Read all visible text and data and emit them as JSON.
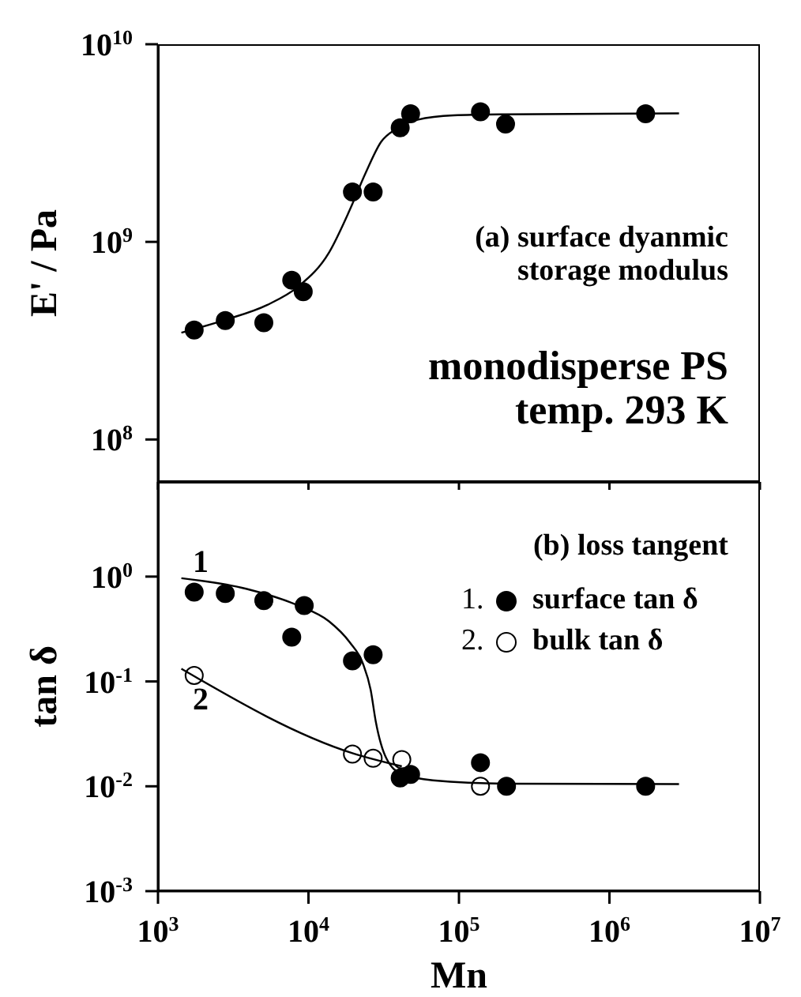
{
  "chart_data": [
    {
      "type": "scatter",
      "ylabel": "E' / Pa",
      "log": "xy",
      "xlim": [
        1000,
        10000000
      ],
      "xticks": [
        {
          "value": 1000,
          "label": null
        },
        {
          "value": 10000,
          "label": null
        },
        {
          "value": 100000,
          "label": null
        },
        {
          "value": 1000000,
          "label": null
        },
        {
          "value": 10000000,
          "label": null
        }
      ],
      "ylim": [
        61000000,
        10000000000
      ],
      "yticks": [
        {
          "value": 100000000,
          "label": "10$^{8}$"
        },
        {
          "value": 1000000000,
          "label": "10$^{9}$"
        },
        {
          "value": 10000000000,
          "label": "10$^{10}$"
        }
      ],
      "tick_labels": "y",
      "annotations": [
        "(a) surface dyanmic\nstorage modulus",
        "monodisperse PS\ntemp. 293 K"
      ],
      "series": [
        {
          "color": "#000000",
          "marker": "circle",
          "x": [
            1740,
            2800,
            5050,
            7740,
            9230,
            19600,
            26900,
            40700,
            47700,
            139000,
            204000,
            1740000
          ],
          "values": [
            358000000,
            400000000,
            390000000,
            640000000,
            560000000,
            1790000000,
            1790000000,
            3780000000,
            4450000000,
            4550000000,
            3950000000,
            4450000000
          ]
        },
        {
          "type": "line",
          "color": "#000000",
          "marker": "none",
          "x": [
            1430,
            2800,
            5300,
            8530,
            13700,
            18800,
            23900,
            30400,
            38500,
            52900,
            92200,
            204000,
            2900000
          ],
          "values": [
            347000000,
            403000000,
            479000000,
            593000000,
            884000000,
            1450000000,
            2220000000,
            3210000000,
            3740000000,
            4150000000,
            4370000000,
            4420000000,
            4470000000
          ]
        }
      ]
    },
    {
      "type": "scatter",
      "ylabel": "tan δ",
      "xlabel": "Mn",
      "log": "xy",
      "xlim": [
        1000,
        10000000
      ],
      "xticks": [
        {
          "value": 1000,
          "label": "10$^{3}$"
        },
        {
          "value": 10000,
          "label": "10$^{4}$"
        },
        {
          "value": 100000,
          "label": "10$^{5}$"
        },
        {
          "value": 1000000,
          "label": "10$^{6}$"
        },
        {
          "value": 10000000,
          "label": "10$^{7}$"
        }
      ],
      "ylim": [
        0.001,
        8
      ],
      "yticks": [
        {
          "value": 0.001,
          "label": "10$^{-3}$"
        },
        {
          "value": 0.01,
          "label": "10$^{-2}$"
        },
        {
          "value": 0.1,
          "label": "10$^{-1}$"
        },
        {
          "value": 1,
          "label": "10$^{0}$"
        }
      ],
      "legend": "top right",
      "annotations": [
        "(b) loss tangent",
        "1",
        "2",
        "1.",
        "2."
      ],
      "series": [
        {
          "name": "surface tan δ",
          "color": "#000000",
          "marker": "circle",
          "x": [
            1740,
            2800,
            5050,
            7740,
            9370,
            19600,
            26900,
            40700,
            47700,
            139000,
            207000,
            1740000
          ],
          "values": [
            0.71,
            0.69,
            0.59,
            0.265,
            0.53,
            0.157,
            0.18,
            0.012,
            0.013,
            0.0168,
            0.01,
            0.01
          ]
        },
        {
          "name": "bulk tan δ",
          "color": "#ffffff",
          "marker": "circle",
          "x": [
            1740,
            19600,
            26900,
            41700,
            139000
          ],
          "values": [
            0.114,
            0.0203,
            0.0185,
            0.018,
            0.01
          ]
        },
        {
          "type": "line",
          "color": "#000000",
          "marker": "none",
          "x": [
            1430,
            3850,
            8530,
            13700,
            18800,
            23000,
            25900,
            28000,
            32900,
            41700,
            67100,
            204000,
            2900000
          ],
          "values": [
            0.966,
            0.766,
            0.53,
            0.374,
            0.236,
            0.148,
            0.083,
            0.0415,
            0.0185,
            0.0131,
            0.0114,
            0.0106,
            0.0105
          ]
        },
        {
          "type": "line",
          "color": "#000000",
          "marker": "none",
          "x": [
            1430,
            19600,
            41700
          ],
          "values": [
            0.132,
            0.0207,
            0.0155
          ]
        }
      ]
    }
  ]
}
